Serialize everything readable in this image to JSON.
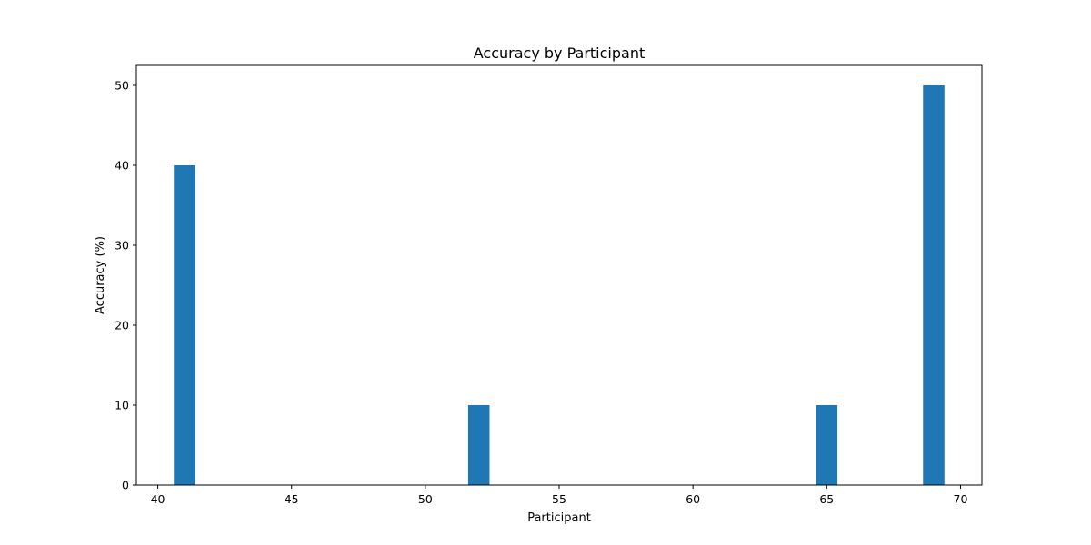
{
  "chart_data": {
    "type": "bar",
    "title": "Accuracy by Participant",
    "xlabel": "Participant",
    "ylabel": "Accuracy (%)",
    "xlim": [
      39.2,
      70.8
    ],
    "ylim": [
      0,
      52.5
    ],
    "xticks": [
      40,
      45,
      50,
      55,
      60,
      65,
      70
    ],
    "yticks": [
      0,
      10,
      20,
      30,
      40,
      50
    ],
    "bar_width": 0.8,
    "bars": [
      {
        "x": 41,
        "value": 40
      },
      {
        "x": 52,
        "value": 10
      },
      {
        "x": 65,
        "value": 10
      },
      {
        "x": 69,
        "value": 50
      }
    ],
    "bar_color": "#1f77b4",
    "grid": false
  }
}
